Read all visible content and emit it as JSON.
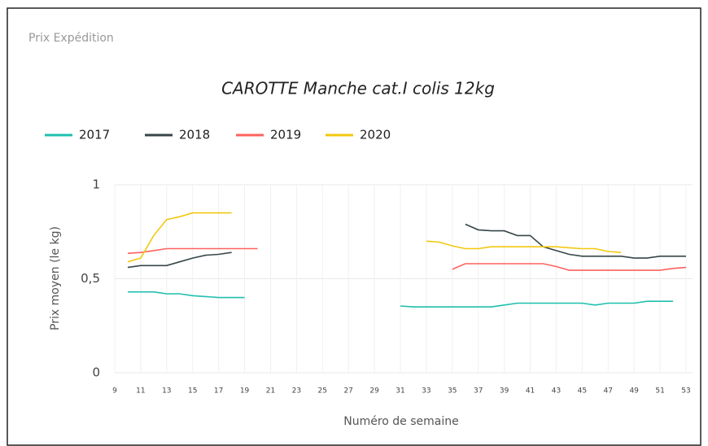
{
  "header": "Prix Expédition",
  "chart_data": {
    "type": "line",
    "title": "CAROTTE Manche cat.I colis 12kg",
    "xlabel": "Numéro de semaine",
    "ylabel": "Prix moyen  (le kg)",
    "x": [
      10,
      11,
      12,
      13,
      14,
      15,
      16,
      17,
      18,
      19,
      20,
      21,
      22,
      23,
      24,
      25,
      26,
      27,
      28,
      29,
      30,
      31,
      32,
      33,
      34,
      35,
      36,
      37,
      38,
      39,
      40,
      41,
      42,
      43,
      44,
      45,
      46,
      47,
      48,
      49,
      50,
      51,
      52,
      53
    ],
    "series": [
      {
        "name": "2017",
        "color": "#1fbfae",
        "values": [
          0.43,
          0.43,
          0.43,
          0.42,
          0.42,
          0.41,
          0.405,
          0.4,
          0.4,
          0.4,
          null,
          null,
          null,
          null,
          null,
          null,
          null,
          null,
          null,
          null,
          null,
          0.355,
          0.35,
          0.35,
          0.35,
          0.35,
          0.35,
          0.35,
          0.35,
          0.36,
          0.37,
          0.37,
          0.37,
          0.37,
          0.37,
          0.37,
          0.36,
          0.37,
          0.37,
          0.37,
          0.38,
          0.38,
          0.38,
          null
        ]
      },
      {
        "name": "2018",
        "color": "#374649",
        "values": [
          0.56,
          0.57,
          0.57,
          0.57,
          0.59,
          0.61,
          0.625,
          0.63,
          0.64,
          null,
          null,
          null,
          null,
          null,
          null,
          null,
          null,
          null,
          null,
          null,
          null,
          null,
          null,
          null,
          null,
          null,
          0.79,
          0.76,
          0.755,
          0.755,
          0.73,
          0.73,
          0.67,
          0.65,
          0.63,
          0.62,
          0.62,
          0.62,
          0.62,
          0.61,
          0.61,
          0.62,
          0.62,
          0.62
        ]
      },
      {
        "name": "2019",
        "color": "#fd625e",
        "values": [
          0.635,
          0.64,
          0.65,
          0.66,
          0.66,
          0.66,
          0.66,
          0.66,
          0.66,
          0.66,
          0.66,
          null,
          null,
          null,
          null,
          null,
          null,
          null,
          null,
          null,
          null,
          null,
          null,
          null,
          null,
          0.55,
          0.58,
          0.58,
          0.58,
          0.58,
          0.58,
          0.58,
          0.58,
          0.565,
          0.545,
          0.545,
          0.545,
          0.545,
          0.545,
          0.545,
          0.545,
          0.545,
          0.555,
          0.56
        ]
      },
      {
        "name": "2020",
        "color": "#f2c80f",
        "values": [
          0.59,
          0.61,
          0.73,
          0.815,
          0.83,
          0.85,
          0.85,
          0.85,
          0.85,
          null,
          null,
          null,
          null,
          null,
          null,
          null,
          null,
          null,
          null,
          null,
          null,
          null,
          null,
          0.7,
          0.695,
          0.675,
          0.66,
          0.66,
          0.67,
          0.67,
          0.67,
          0.67,
          0.67,
          0.67,
          0.665,
          0.66,
          0.66,
          0.645,
          0.64,
          null,
          null,
          null,
          null,
          null
        ]
      }
    ],
    "xlim": [
      9,
      53
    ],
    "xticks": [
      9,
      11,
      13,
      15,
      17,
      19,
      21,
      23,
      25,
      27,
      29,
      31,
      33,
      35,
      37,
      39,
      41,
      43,
      45,
      47,
      49,
      51,
      53
    ],
    "ylim": [
      0,
      1
    ],
    "yticks": [
      0,
      {
        "value": 0.5,
        "label": "0,5"
      },
      1
    ],
    "grid": true,
    "legend": "top-left"
  }
}
